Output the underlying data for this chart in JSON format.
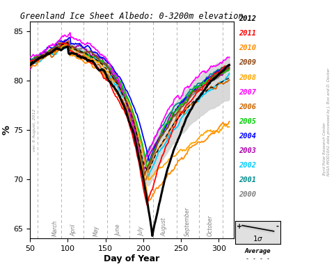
{
  "title": "Greenland Ice Sheet Albedo: 0-3200m elevation",
  "xlabel": "Day of Year",
  "ylabel": "%",
  "xlim": [
    50,
    320
  ],
  "ylim": [
    64,
    86
  ],
  "yticks": [
    65,
    70,
    75,
    80,
    85
  ],
  "xticks": [
    50,
    100,
    150,
    200,
    250,
    300
  ],
  "month_labels": [
    {
      "x": 83,
      "label": "March"
    },
    {
      "x": 108,
      "label": "April"
    },
    {
      "x": 138,
      "label": "May"
    },
    {
      "x": 168,
      "label": "June"
    },
    {
      "x": 198,
      "label": "July"
    },
    {
      "x": 228,
      "label": "August"
    },
    {
      "x": 259,
      "label": "September"
    },
    {
      "x": 289,
      "label": "October"
    }
  ],
  "month_vlines": [
    60,
    91,
    121,
    152,
    182,
    213,
    244,
    274,
    305
  ],
  "year_colors": {
    "2012": "#000000",
    "2011": "#ff0000",
    "2010": "#ff8c00",
    "2009": "#8b4513",
    "2008": "#ffa500",
    "2007": "#ff00ff",
    "2006": "#cc6600",
    "2005": "#00cc00",
    "2004": "#0000ff",
    "2003": "#aa00aa",
    "2002": "#00ccff",
    "2001": "#008b8b",
    "2000": "#808080"
  },
  "watermark": "ver. 6 August, 2012",
  "credit_line1": "NASA MOD10A1 data processed by J. Box and D. Decker",
  "credit_line2": "Byrd Polar Research Center",
  "background_color": "#ffffff"
}
